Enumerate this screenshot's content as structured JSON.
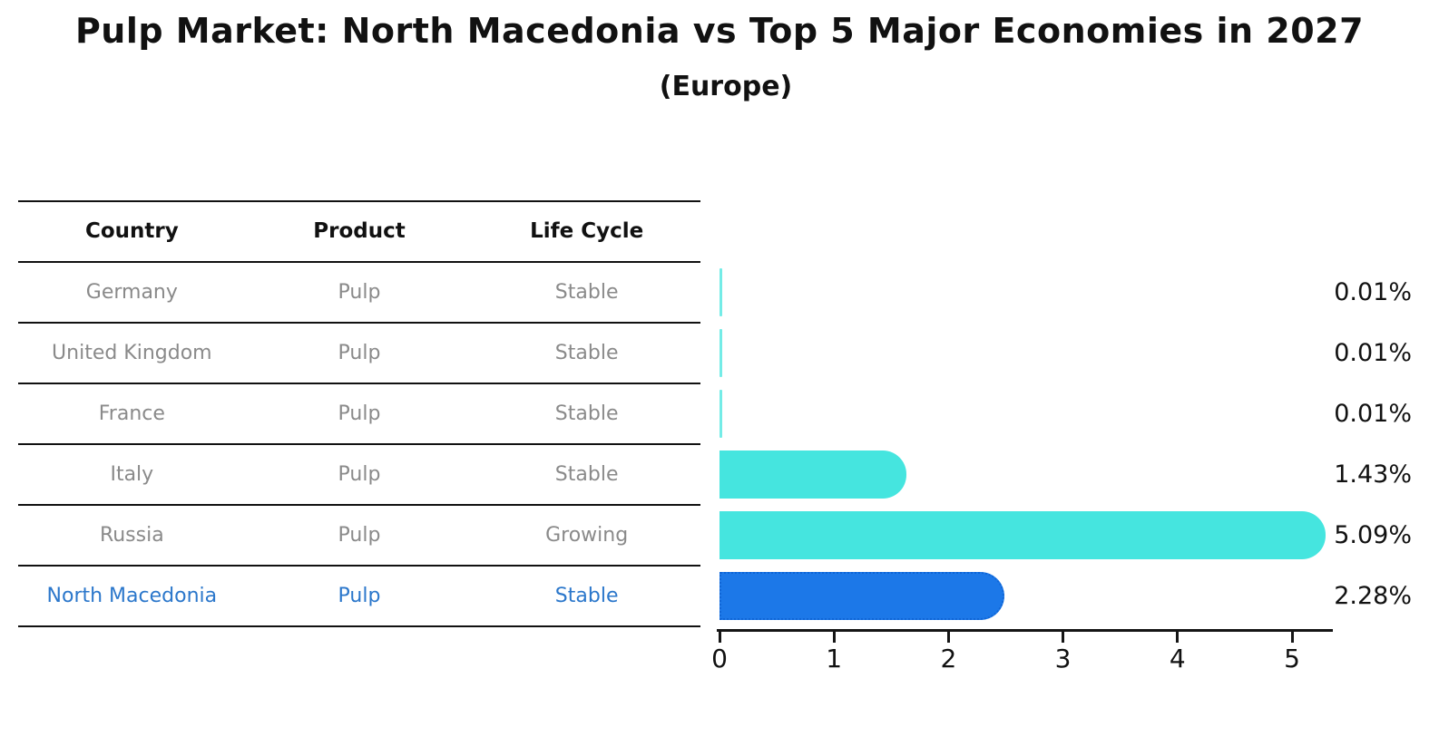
{
  "title": "Pulp Market: North Macedonia vs Top 5 Major Economies in 2027",
  "subtitle": "(Europe)",
  "table": {
    "headers": [
      "Country",
      "Product",
      "Life Cycle"
    ],
    "rows": [
      {
        "country": "Germany",
        "product": "Pulp",
        "life_cycle": "Stable",
        "highlight": false
      },
      {
        "country": "United Kingdom",
        "product": "Pulp",
        "life_cycle": "Stable",
        "highlight": false
      },
      {
        "country": "France",
        "product": "Pulp",
        "life_cycle": "Stable",
        "highlight": false
      },
      {
        "country": "Italy",
        "product": "Pulp",
        "life_cycle": "Stable",
        "highlight": false
      },
      {
        "country": "Russia",
        "product": "Pulp",
        "life_cycle": "Growing",
        "highlight": false
      },
      {
        "country": "North Macedonia",
        "product": "Pulp",
        "life_cycle": "Stable",
        "highlight": true
      }
    ]
  },
  "chart_data": {
    "type": "bar",
    "orientation": "horizontal",
    "title": "Pulp Market: North Macedonia vs Top 5 Major Economies in 2027",
    "subtitle": "(Europe)",
    "categories": [
      "Germany",
      "United Kingdom",
      "France",
      "Italy",
      "Russia",
      "North Macedonia"
    ],
    "values": [
      0.01,
      0.01,
      0.01,
      1.43,
      5.09,
      2.28
    ],
    "value_labels": [
      "0.01%",
      "0.01%",
      "0.01%",
      "1.43%",
      "5.09%",
      "2.28%"
    ],
    "xticks": [
      "0",
      "1",
      "2",
      "3",
      "4",
      "5"
    ],
    "xlim": [
      0,
      5.36
    ],
    "grid": false,
    "legend": false,
    "highlight_index": 5,
    "bar_color": "#45e5df",
    "highlight_color": "#1c78e8",
    "highlight_text_color": "#2b77cb",
    "row_text_color": "#8a8a8a"
  }
}
